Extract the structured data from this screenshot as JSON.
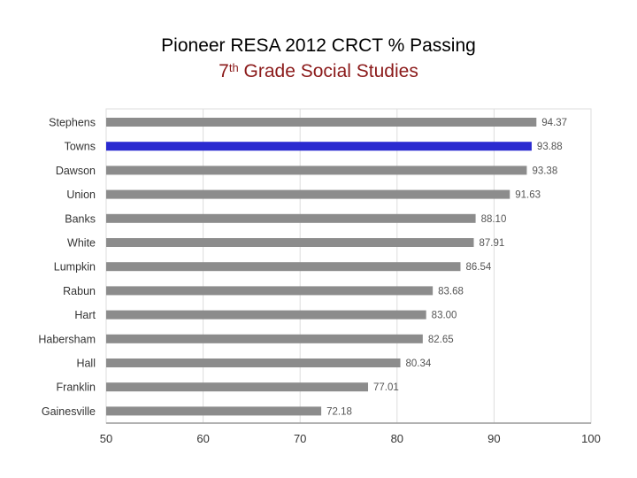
{
  "title_line1": "Pioneer RESA 2012 CRCT % Passing",
  "title_line2_pre": "7",
  "title_line2_sup": "th",
  "title_line2_post": " Grade Social Studies",
  "colors": {
    "bar": "#8c8c8c",
    "highlight": "#2a2ad0",
    "grid": "#dddddd",
    "axis": "#999999"
  },
  "chart_data": {
    "type": "bar",
    "orientation": "horizontal",
    "title": "Pioneer RESA 2012 CRCT % Passing 7th Grade Social Studies",
    "categories": [
      "Stephens",
      "Towns",
      "Dawson",
      "Union",
      "Banks",
      "White",
      "Lumpkin",
      "Rabun",
      "Hart",
      "Habersham",
      "Hall",
      "Franklin",
      "Gainesville"
    ],
    "values": [
      94.37,
      93.88,
      93.38,
      91.63,
      88.1,
      87.91,
      86.54,
      83.68,
      83.0,
      82.65,
      80.34,
      77.01,
      72.18
    ],
    "value_labels": [
      "94.37",
      "93.88",
      "93.38",
      "91.63",
      "88.10",
      "87.91",
      "86.54",
      "83.68",
      "83.00",
      "82.65",
      "80.34",
      "77.01",
      "72.18"
    ],
    "highlight": "Towns",
    "xlim": [
      50,
      100
    ],
    "xticks": [
      50,
      60,
      70,
      80,
      90,
      100
    ],
    "grid": true,
    "legend": "none"
  }
}
